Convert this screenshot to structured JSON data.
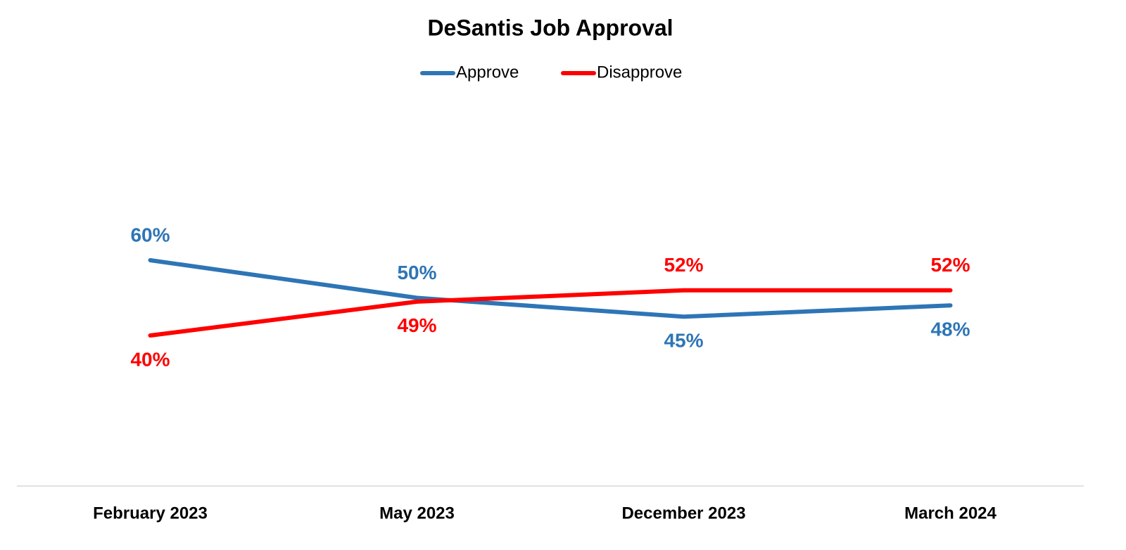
{
  "chart_data": {
    "type": "line",
    "title": "DeSantis Job Approval",
    "categories": [
      "February 2023",
      "May 2023",
      "December 2023",
      "March 2024"
    ],
    "series": [
      {
        "name": "Approve",
        "color": "#2e75b6",
        "values": [
          60,
          50,
          45,
          48
        ],
        "value_labels": [
          "60%",
          "50%",
          "45%",
          "48%"
        ]
      },
      {
        "name": "Disapprove",
        "color": "#ff0000",
        "values": [
          40,
          49,
          52,
          52
        ],
        "value_labels": [
          "40%",
          "49%",
          "52%",
          "52%"
        ]
      }
    ],
    "ylim": [
      0,
      100
    ],
    "grid": false,
    "legend": "top"
  }
}
